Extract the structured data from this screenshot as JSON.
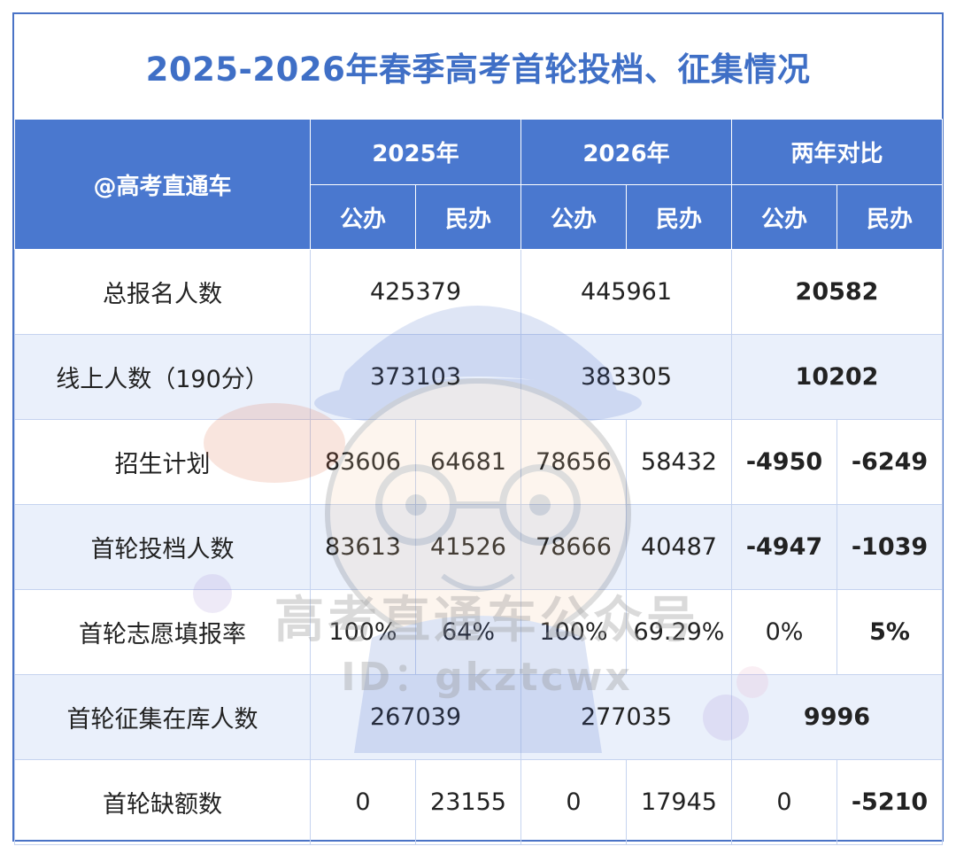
{
  "title": "2025-2026年春季高考首轮投档、征集情况",
  "header": {
    "corner": "@高考直通车",
    "years": [
      "2025年",
      "2026年",
      "两年对比"
    ],
    "sub": [
      "公办",
      "民办",
      "公办",
      "民办",
      "公办",
      "民办"
    ]
  },
  "rows": [
    {
      "label": "总报名人数",
      "merged": true,
      "y2025": "425379",
      "y2026": "445961",
      "diff": "20582",
      "diff_tone": "pos"
    },
    {
      "label": "线上人数（190分）",
      "merged": true,
      "y2025": "373103",
      "y2026": "383305",
      "diff": "10202",
      "diff_tone": "pos"
    },
    {
      "label": "招生计划",
      "merged": false,
      "cells": [
        "83606",
        "64681",
        "78656",
        "58432"
      ],
      "diffs": [
        "-4950",
        "-6249"
      ],
      "diff_tones": [
        "neg",
        "neg"
      ]
    },
    {
      "label": "首轮投档人数",
      "merged": false,
      "cells": [
        "83613",
        "41526",
        "78666",
        "40487"
      ],
      "diffs": [
        "-4947",
        "-1039"
      ],
      "diff_tones": [
        "neg",
        "neg"
      ]
    },
    {
      "label": "首轮志愿填报率",
      "merged": false,
      "cells": [
        "100%",
        "64%",
        "100%",
        "69.29%"
      ],
      "diffs": [
        "0%",
        "5%"
      ],
      "diff_tones": [
        "neutral",
        "pos"
      ]
    },
    {
      "label": "首轮征集在库人数",
      "merged": true,
      "y2025": "267039",
      "y2026": "277035",
      "diff": "9996",
      "diff_tone": "pos"
    },
    {
      "label": "首轮缺额数",
      "merged": false,
      "cells": [
        "0",
        "23155",
        "0",
        "17945"
      ],
      "diffs": [
        "0",
        "-5210"
      ],
      "diff_tones": [
        "neutral",
        "neg"
      ]
    }
  ],
  "watermark": {
    "line1": "高考直通车公众号",
    "line2": "ID：gkztcwx"
  },
  "colors": {
    "header_bg": "#4a78cf",
    "title": "#3f6fc6",
    "positive": "#e01f1f",
    "negative": "#1f9a3a",
    "shade": "#eaf0fb"
  }
}
